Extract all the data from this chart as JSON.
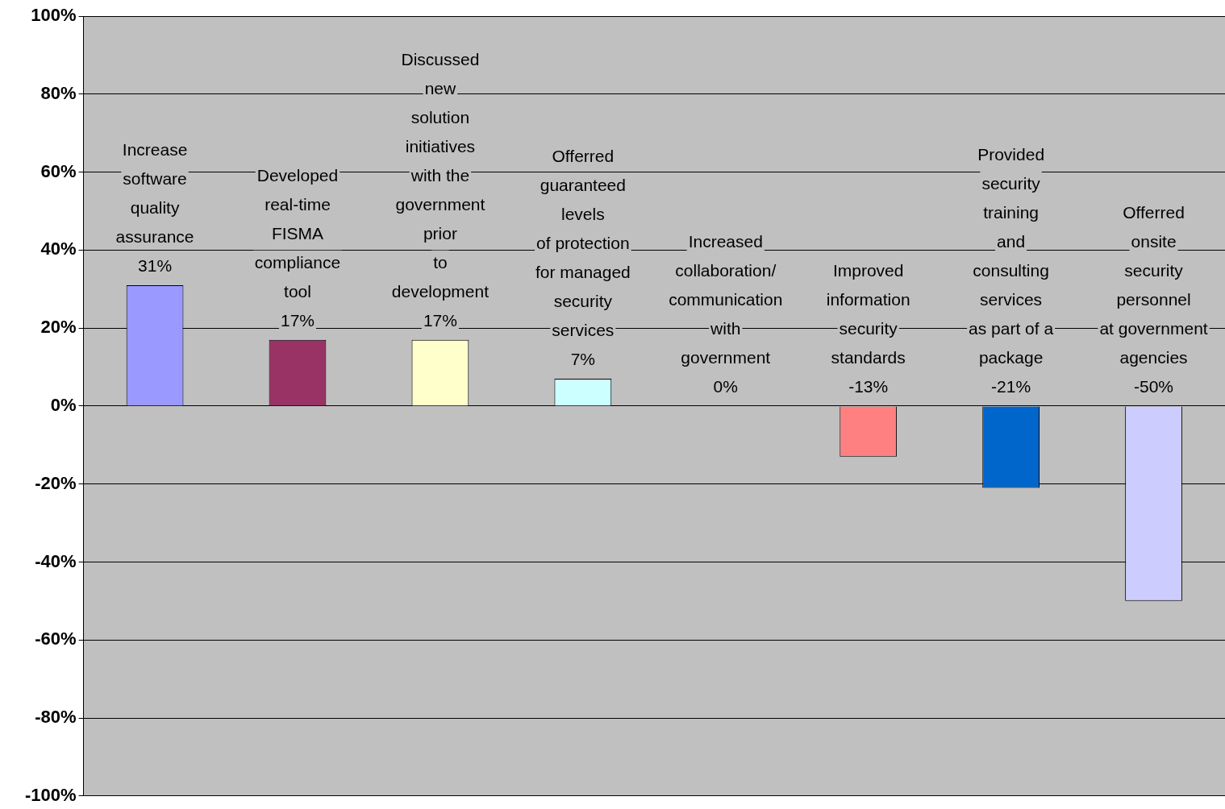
{
  "chart_data": {
    "type": "bar",
    "categories": [
      "Increase\nsoftware\nquality\nassurance",
      "Developed\nreal-time\nFISMA\ncompliance\ntool",
      "Discussed\nnew\nsolution\ninitiatives\nwith the\ngovernment\nprior\nto\ndevelopment",
      "Offerred\nguaranteed\nlevels\nof protection\nfor managed\nsecurity\nservices",
      "Increased\ncollaboration/\ncommunication\nwith\ngovernment",
      "Improved\ninformation\nsecurity\nstandards",
      "Provided\nsecurity\ntraining\nand\nconsulting\nservices\nas part of a\npackage",
      "Offerred\nonsite\nsecurity\npersonnel\nat government\nagencies"
    ],
    "values": [
      31,
      17,
      17,
      7,
      0,
      -13,
      -21,
      -50
    ],
    "value_labels": [
      "31%",
      "17%",
      "17%",
      "7%",
      "0%",
      "-13%",
      "-21%",
      "-50%"
    ],
    "colors": [
      "#9999ff",
      "#993366",
      "#ffffcc",
      "#ccffff",
      "#660066",
      "#ff8080",
      "#0066cc",
      "#ccccff"
    ],
    "ylim": [
      -100,
      100
    ],
    "yticks": [
      {
        "value": -100,
        "label": "-100%"
      },
      {
        "value": -80,
        "label": "-80%"
      },
      {
        "value": -60,
        "label": "-60%"
      },
      {
        "value": -40,
        "label": "-40%"
      },
      {
        "value": -20,
        "label": "-20%"
      },
      {
        "value": 0,
        "label": "0%"
      },
      {
        "value": 20,
        "label": "20%"
      },
      {
        "value": 40,
        "label": "40%"
      },
      {
        "value": 60,
        "label": "60%"
      },
      {
        "value": 80,
        "label": "80%"
      },
      {
        "value": 100,
        "label": "100%"
      }
    ],
    "grid": "y",
    "tick_labels": "y",
    "legend": false
  }
}
